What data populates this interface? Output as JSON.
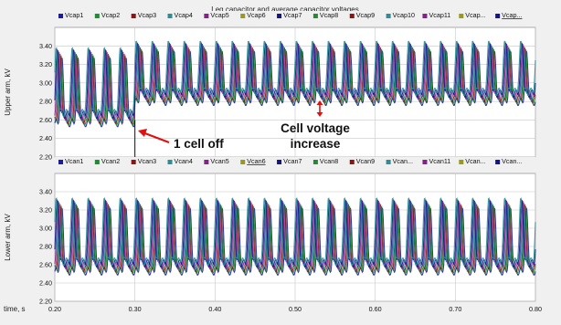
{
  "title": "Leg capacitor and average capacitor voltages",
  "x_axis_label": "time, s",
  "colors": {
    "c1": "#1c1ca0",
    "c2": "#1e8f2e",
    "c3": "#8e1414",
    "c4": "#2a8f9a",
    "c5": "#8a1e8e",
    "c6": "#9a9a1a",
    "c7": "#14148a",
    "arrow": "#e01010",
    "grid": "#c8c8c8",
    "plot_bg": "#ffffff",
    "frame_bg": "#f0f0f0"
  },
  "annotations": {
    "cell_off": "1 cell off",
    "cell_voltage_line1": "Cell voltage",
    "cell_voltage_line2": "increase"
  },
  "chart_data": [
    {
      "type": "line",
      "ylabel": "Upper arm, kV",
      "xlim": [
        0.2,
        0.8
      ],
      "ylim": [
        2.2,
        3.6
      ],
      "x_ticks": [
        "0.20",
        "0.30",
        "0.40",
        "0.50",
        "0.60",
        "0.70",
        "0.80"
      ],
      "y_ticks": [
        "2.20",
        "2.40",
        "2.60",
        "2.80",
        "3.00",
        "3.20",
        "3.40"
      ],
      "legend": [
        "Vcap1",
        "Vcap2",
        "Vcap3",
        "Vcap4",
        "Vcap5",
        "Vcap6",
        "Vcap7",
        "Vcap8",
        "Vcap9",
        "Vcap10",
        "Vcap11",
        "Vcap...",
        "Vcap..."
      ],
      "legend_colors": [
        "#1c1ca0",
        "#1e8f2e",
        "#8e1414",
        "#2a8f9a",
        "#8a1e8e",
        "#9a9a1a",
        "#14148a",
        "#1e8f2e",
        "#8e1414",
        "#2a8f9a",
        "#8a1e8e",
        "#9a9a1a",
        "#14148a"
      ],
      "legend_underlined_index": 12,
      "period_s": 0.02,
      "segments": [
        {
          "x_range": [
            0.2,
            0.3
          ],
          "min_kV": 2.62,
          "max_kV": 3.3,
          "mean_kV": 2.9
        },
        {
          "x_range": [
            0.3,
            0.8
          ],
          "min_kV": 2.85,
          "max_kV": 3.37,
          "mean_kV": 3.02
        }
      ],
      "events": [
        {
          "x": 0.3,
          "label": "1 cell off"
        }
      ]
    },
    {
      "type": "line",
      "ylabel": "Lower arm, kV",
      "xlim": [
        0.2,
        0.8
      ],
      "ylim": [
        2.2,
        3.6
      ],
      "x_ticks": [
        "0.20",
        "0.30",
        "0.40",
        "0.50",
        "0.60",
        "0.70",
        "0.80"
      ],
      "y_ticks": [
        "2.20",
        "2.40",
        "2.60",
        "2.80",
        "3.00",
        "3.20",
        "3.40"
      ],
      "legend": [
        "Vcan1",
        "Vcan2",
        "Vcan3",
        "Vcan4",
        "Vcan5",
        "Vcan6",
        "Vcan7",
        "Vcan8",
        "Vcan9",
        "Vcan...",
        "Vcan11",
        "Vcan...",
        "Vcan..."
      ],
      "legend_colors": [
        "#1c1ca0",
        "#1e8f2e",
        "#8e1414",
        "#2a8f9a",
        "#8a1e8e",
        "#9a9a1a",
        "#14148a",
        "#1e8f2e",
        "#8e1414",
        "#2a8f9a",
        "#8a1e8e",
        "#9a9a1a",
        "#14148a"
      ],
      "legend_underlined_index": 5,
      "period_s": 0.02,
      "segments": [
        {
          "x_range": [
            0.2,
            0.8
          ],
          "min_kV": 2.58,
          "max_kV": 3.25,
          "mean_kV": 2.85
        }
      ]
    }
  ]
}
